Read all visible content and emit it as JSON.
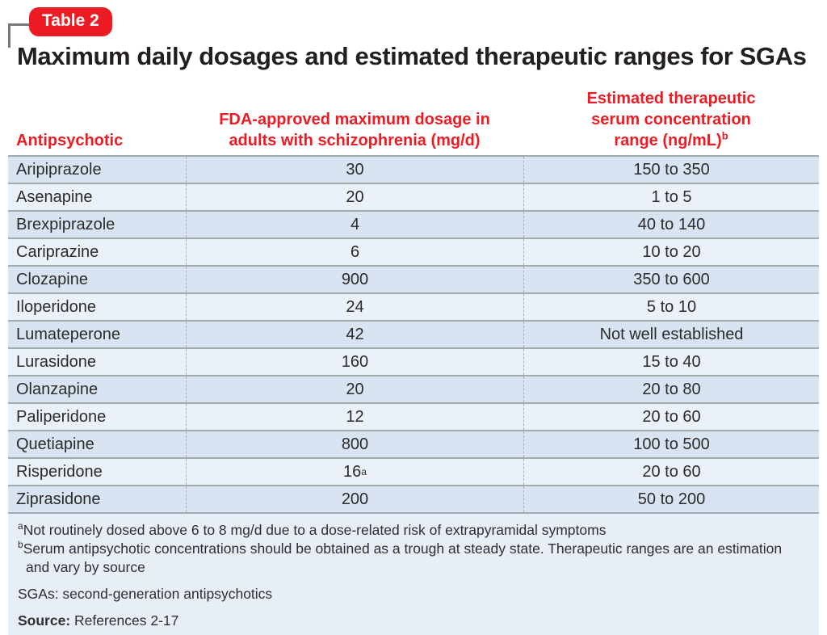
{
  "badge": {
    "label": "Table 2"
  },
  "title": "Maximum daily dosages and estimated therapeutic ranges for SGAs",
  "table": {
    "headers": {
      "col1": "Antipsychotic",
      "col2_line1": "FDA-approved maximum dosage in",
      "col2_line2": "adults with schizophrenia (mg/d)",
      "col3_line1": "Estimated therapeutic",
      "col3_line2": "serum concentration",
      "col3_line3": "range (ng/mL)",
      "col3_sup": "b"
    },
    "rows": [
      {
        "drug": "Aripiprazole",
        "dose": "30",
        "dose_sup": "",
        "range": "150 to 350"
      },
      {
        "drug": "Asenapine",
        "dose": "20",
        "dose_sup": "",
        "range": "1 to 5"
      },
      {
        "drug": "Brexpiprazole",
        "dose": "4",
        "dose_sup": "",
        "range": "40 to 140"
      },
      {
        "drug": "Cariprazine",
        "dose": "6",
        "dose_sup": "",
        "range": "10 to 20"
      },
      {
        "drug": "Clozapine",
        "dose": "900",
        "dose_sup": "",
        "range": "350 to 600"
      },
      {
        "drug": "Iloperidone",
        "dose": "24",
        "dose_sup": "",
        "range": "5 to 10"
      },
      {
        "drug": "Lumateperone",
        "dose": "42",
        "dose_sup": "",
        "range": "Not well established"
      },
      {
        "drug": "Lurasidone",
        "dose": "160",
        "dose_sup": "",
        "range": "15 to 40"
      },
      {
        "drug": "Olanzapine",
        "dose": "20",
        "dose_sup": "",
        "range": "20 to 80"
      },
      {
        "drug": "Paliperidone",
        "dose": "12",
        "dose_sup": "",
        "range": "20 to 60"
      },
      {
        "drug": "Quetiapine",
        "dose": "800",
        "dose_sup": "",
        "range": "100 to 500"
      },
      {
        "drug": "Risperidone",
        "dose": "16",
        "dose_sup": "a",
        "range": "20 to 60"
      },
      {
        "drug": "Ziprasidone",
        "dose": "200",
        "dose_sup": "",
        "range": "50 to 200"
      }
    ]
  },
  "footnotes": {
    "a_sup": "a",
    "a_text": "Not routinely dosed above 6 to 8 mg/d due to a dose-related risk of extrapyramidal symptoms",
    "b_sup": "b",
    "b_text": "Serum antipsychotic concentrations should be obtained as a trough at steady state. Therapeutic ranges are an estimation and vary by source",
    "abbrev": "SGAs: second-generation antipsychotics",
    "source_label": "Source:",
    "source_text": " References 2-17"
  },
  "colors": {
    "accent_red": "#ed1c24",
    "row_dark": "#d8e4f1",
    "row_light": "#ebf1f8",
    "footnote_bg": "#e8eef7",
    "divider_gray": "#a2a9af",
    "bracket_gray": "#77787b"
  }
}
